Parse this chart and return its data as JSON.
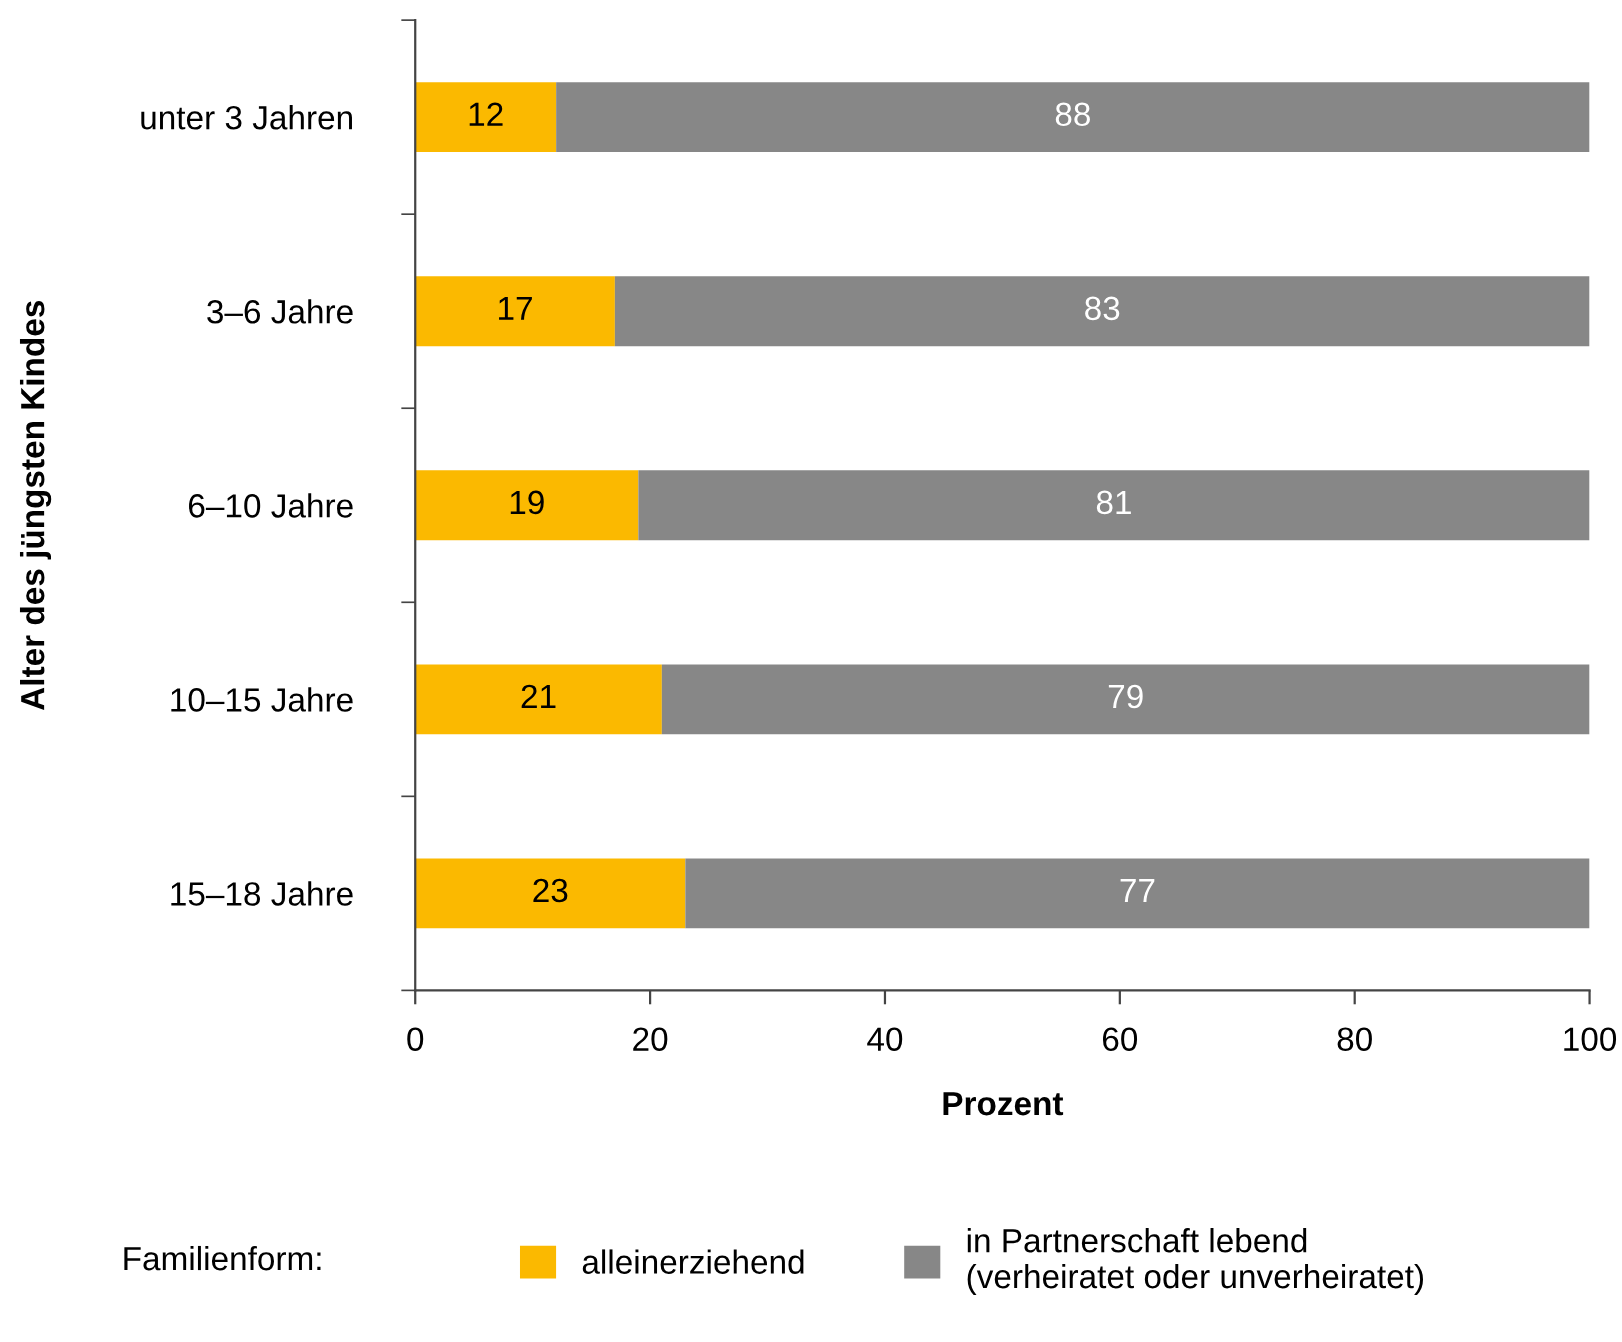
{
  "chart_data": {
    "type": "bar",
    "orientation": "horizontal",
    "stacked": true,
    "categories": [
      "unter 3 Jahren",
      "3–6 Jahre",
      "6–10 Jahre",
      "10–15 Jahre",
      "15–18 Jahre"
    ],
    "series": [
      {
        "name": "alleinerziehend",
        "color": "#fbb900",
        "values": [
          12,
          17,
          19,
          21,
          23
        ]
      },
      {
        "name": "in Partnerschaft lebend\n(verheiratet oder unverheiratet)",
        "color": "#878787",
        "values": [
          88,
          83,
          81,
          79,
          77
        ]
      }
    ],
    "xlabel": "Prozent",
    "ylabel": "Alter des jüngsten Kindes",
    "legend_title": "Familienform:",
    "xlim": [
      0,
      100
    ],
    "xticks": [
      0,
      20,
      40,
      60,
      80,
      100
    ],
    "data_labels": true,
    "grid": false,
    "legend": "bottom"
  }
}
